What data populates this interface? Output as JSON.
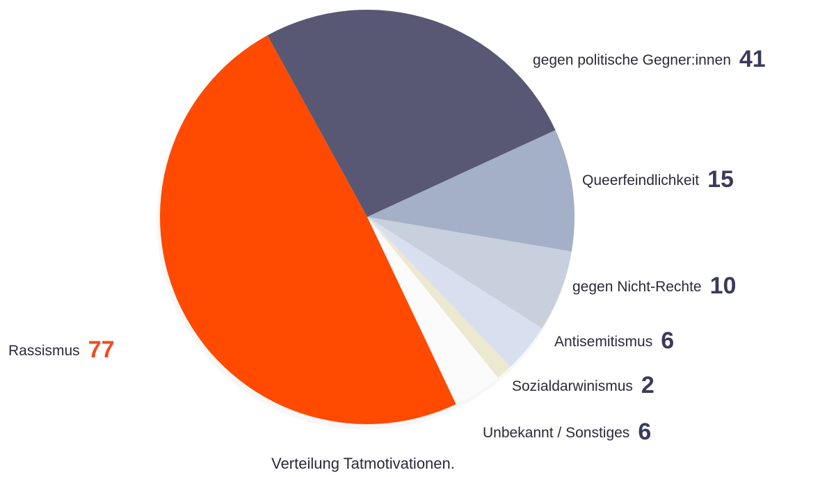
{
  "chart_data": {
    "type": "pie",
    "title": "Verteilung Tatmotivationen.",
    "categories": [
      "gegen politische Gegner:innen",
      "Queerfeindlichkeit",
      "gegen Nicht-Rechte",
      "Antisemitismus",
      "Sozialdarwinismus",
      "Unbekannt / Sonstiges",
      "Rassismus"
    ],
    "values": [
      41,
      15,
      10,
      6,
      2,
      6,
      77
    ],
    "colors": [
      "#585874",
      "#a4b0c8",
      "#c8d0de",
      "#d8e0f0",
      "#ede8d0",
      "#fbfbfb",
      "#ff4a00"
    ]
  }
}
